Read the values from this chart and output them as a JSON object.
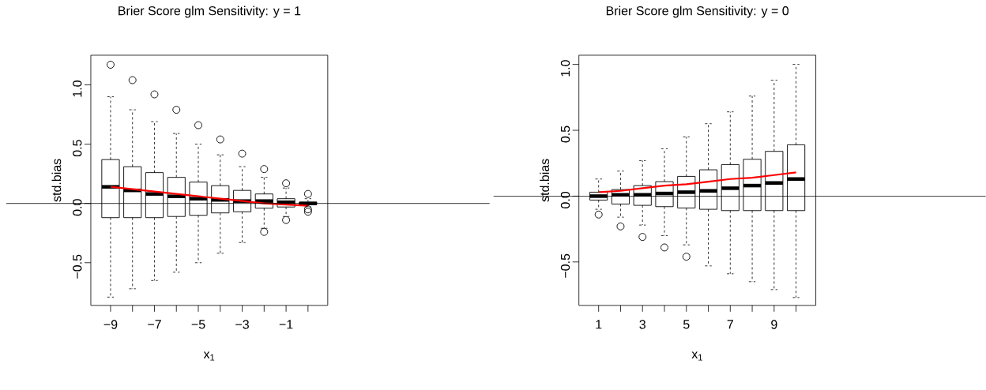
{
  "chart_data": [
    {
      "type": "box",
      "title": "Brier Score glm Sensitivity: y = 1",
      "xlabel": "x$_{1}$",
      "ylabel": "std.bias",
      "categories": [
        "−9",
        null,
        "−7",
        null,
        "−5",
        null,
        "−3",
        null,
        "−1",
        null
      ],
      "boxes": [
        {
          "low": -0.79,
          "q1": -0.12,
          "median": 0.14,
          "q3": 0.37,
          "high": 0.9,
          "outliers": [
            1.17
          ]
        },
        {
          "low": -0.72,
          "q1": -0.12,
          "median": 0.11,
          "q3": 0.31,
          "high": 0.79,
          "outliers": [
            1.04
          ]
        },
        {
          "low": -0.65,
          "q1": -0.12,
          "median": 0.08,
          "q3": 0.26,
          "high": 0.69,
          "outliers": [
            0.92
          ]
        },
        {
          "low": -0.58,
          "q1": -0.11,
          "median": 0.06,
          "q3": 0.22,
          "high": 0.59,
          "outliers": [
            0.79
          ]
        },
        {
          "low": -0.5,
          "q1": -0.1,
          "median": 0.04,
          "q3": 0.18,
          "high": 0.5,
          "outliers": [
            0.66
          ]
        },
        {
          "low": -0.42,
          "q1": -0.08,
          "median": 0.03,
          "q3": 0.15,
          "high": 0.41,
          "outliers": [
            0.54
          ]
        },
        {
          "low": -0.33,
          "q1": -0.07,
          "median": 0.02,
          "q3": 0.11,
          "high": 0.31,
          "outliers": [
            0.42
          ]
        },
        {
          "low": -0.21,
          "q1": -0.04,
          "median": 0.02,
          "q3": 0.08,
          "high": 0.22,
          "outliers": [
            0.29,
            -0.24
          ]
        },
        {
          "low": -0.11,
          "q1": -0.03,
          "median": 0.01,
          "q3": 0.04,
          "high": 0.13,
          "outliers": [
            0.17,
            -0.14
          ]
        },
        {
          "low": -0.03,
          "q1": -0.01,
          "median": 0.0,
          "q3": 0.01,
          "high": 0.04,
          "outliers": [
            0.08,
            -0.05,
            -0.07
          ]
        }
      ],
      "series": [
        {
          "type": "line",
          "color": "#ff0000",
          "values": [
            0.14,
            0.12,
            0.1,
            0.08,
            0.06,
            0.04,
            0.02,
            0.0,
            -0.01,
            -0.02
          ]
        }
      ],
      "ref_lines": [
        {
          "axis": "y",
          "value": 0,
          "color": "#000000"
        }
      ],
      "ylim": [
        -0.86,
        1.25
      ],
      "yticks": [
        {
          "value": -0.5,
          "label": "−0.5"
        },
        {
          "value": 0,
          "label": "0.0"
        },
        {
          "value": 0.5,
          "label": "0.5"
        },
        {
          "value": 1.0,
          "label": "1.0"
        }
      ]
    },
    {
      "type": "box",
      "title": "Brier Score glm Sensitivity: y = 0",
      "xlabel": "x$_{1}$",
      "ylabel": "std.bias",
      "categories": [
        "1",
        null,
        "3",
        null,
        "5",
        null,
        "7",
        null,
        "9",
        null
      ],
      "boxes": [
        {
          "low": -0.1,
          "q1": -0.03,
          "median": 0.0,
          "q3": 0.03,
          "high": 0.13,
          "outliers": [
            -0.14
          ]
        },
        {
          "low": -0.16,
          "q1": -0.06,
          "median": 0.01,
          "q3": 0.05,
          "high": 0.19,
          "outliers": [
            -0.23
          ]
        },
        {
          "low": -0.22,
          "q1": -0.07,
          "median": 0.01,
          "q3": 0.08,
          "high": 0.27,
          "outliers": [
            -0.31
          ]
        },
        {
          "low": -0.3,
          "q1": -0.08,
          "median": 0.02,
          "q3": 0.11,
          "high": 0.36,
          "outliers": [
            -0.39
          ]
        },
        {
          "low": -0.37,
          "q1": -0.09,
          "median": 0.03,
          "q3": 0.15,
          "high": 0.45,
          "outliers": [
            -0.46
          ]
        },
        {
          "low": -0.53,
          "q1": -0.1,
          "median": 0.04,
          "q3": 0.2,
          "high": 0.55
        },
        {
          "low": -0.59,
          "q1": -0.11,
          "median": 0.06,
          "q3": 0.24,
          "high": 0.64
        },
        {
          "low": -0.65,
          "q1": -0.11,
          "median": 0.08,
          "q3": 0.28,
          "high": 0.76
        },
        {
          "low": -0.71,
          "q1": -0.11,
          "median": 0.1,
          "q3": 0.34,
          "high": 0.88
        },
        {
          "low": -0.77,
          "q1": -0.11,
          "median": 0.13,
          "q3": 0.39,
          "high": 1.0
        }
      ],
      "series": [
        {
          "type": "line",
          "color": "#ff0000",
          "values": [
            0.03,
            0.04,
            0.06,
            0.08,
            0.09,
            0.11,
            0.13,
            0.14,
            0.16,
            0.18
          ]
        }
      ],
      "ref_lines": [
        {
          "axis": "y",
          "value": 0,
          "color": "#000000"
        }
      ],
      "ylim": [
        -0.83,
        1.07
      ],
      "yticks": [
        {
          "value": -0.5,
          "label": "−0.5"
        },
        {
          "value": 0,
          "label": "0.0"
        },
        {
          "value": 0.5,
          "label": "0.5"
        },
        {
          "value": 1.0,
          "label": "1.0"
        }
      ]
    }
  ]
}
